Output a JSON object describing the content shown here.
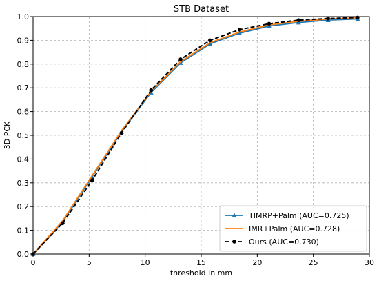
{
  "chart_data": {
    "type": "line",
    "title": "STB Dataset",
    "xlabel": "threshold in mm",
    "ylabel": "3D PCK",
    "xlim": [
      0,
      30
    ],
    "ylim": [
      0,
      1.0
    ],
    "xticks": [
      "0",
      "5",
      "10",
      "15",
      "20",
      "25",
      "30"
    ],
    "yticks": [
      "0.0",
      "0.1",
      "0.2",
      "0.3",
      "0.4",
      "0.5",
      "0.6",
      "0.7",
      "0.8",
      "0.9",
      "1.0"
    ],
    "grid": true,
    "legend_position": "bottom-right",
    "x": [
      0,
      2.6316,
      5.2632,
      7.8947,
      10.5263,
      13.1579,
      15.7895,
      18.4211,
      21.0526,
      23.6842,
      26.3158,
      28.9474
    ],
    "series": [
      {
        "name": "TIMRP+Palm (AUC=0.725)",
        "color": "#1f77b4",
        "marker": "triangle",
        "style": "solid",
        "values": [
          0.0,
          0.135,
          0.325,
          0.515,
          0.68,
          0.805,
          0.885,
          0.93,
          0.96,
          0.975,
          0.985,
          0.99
        ]
      },
      {
        "name": "IMR+Palm (AUC=0.728)",
        "color": "#ff7f0e",
        "marker": "none",
        "style": "solid",
        "values": [
          0.0,
          0.14,
          0.33,
          0.52,
          0.685,
          0.81,
          0.89,
          0.935,
          0.965,
          0.98,
          0.99,
          0.995
        ]
      },
      {
        "name": "Ours (AUC=0.730)",
        "color": "#000000",
        "marker": "circle",
        "style": "dashed",
        "values": [
          0.0,
          0.13,
          0.31,
          0.51,
          0.69,
          0.82,
          0.9,
          0.945,
          0.97,
          0.985,
          0.992,
          0.996
        ]
      }
    ]
  }
}
